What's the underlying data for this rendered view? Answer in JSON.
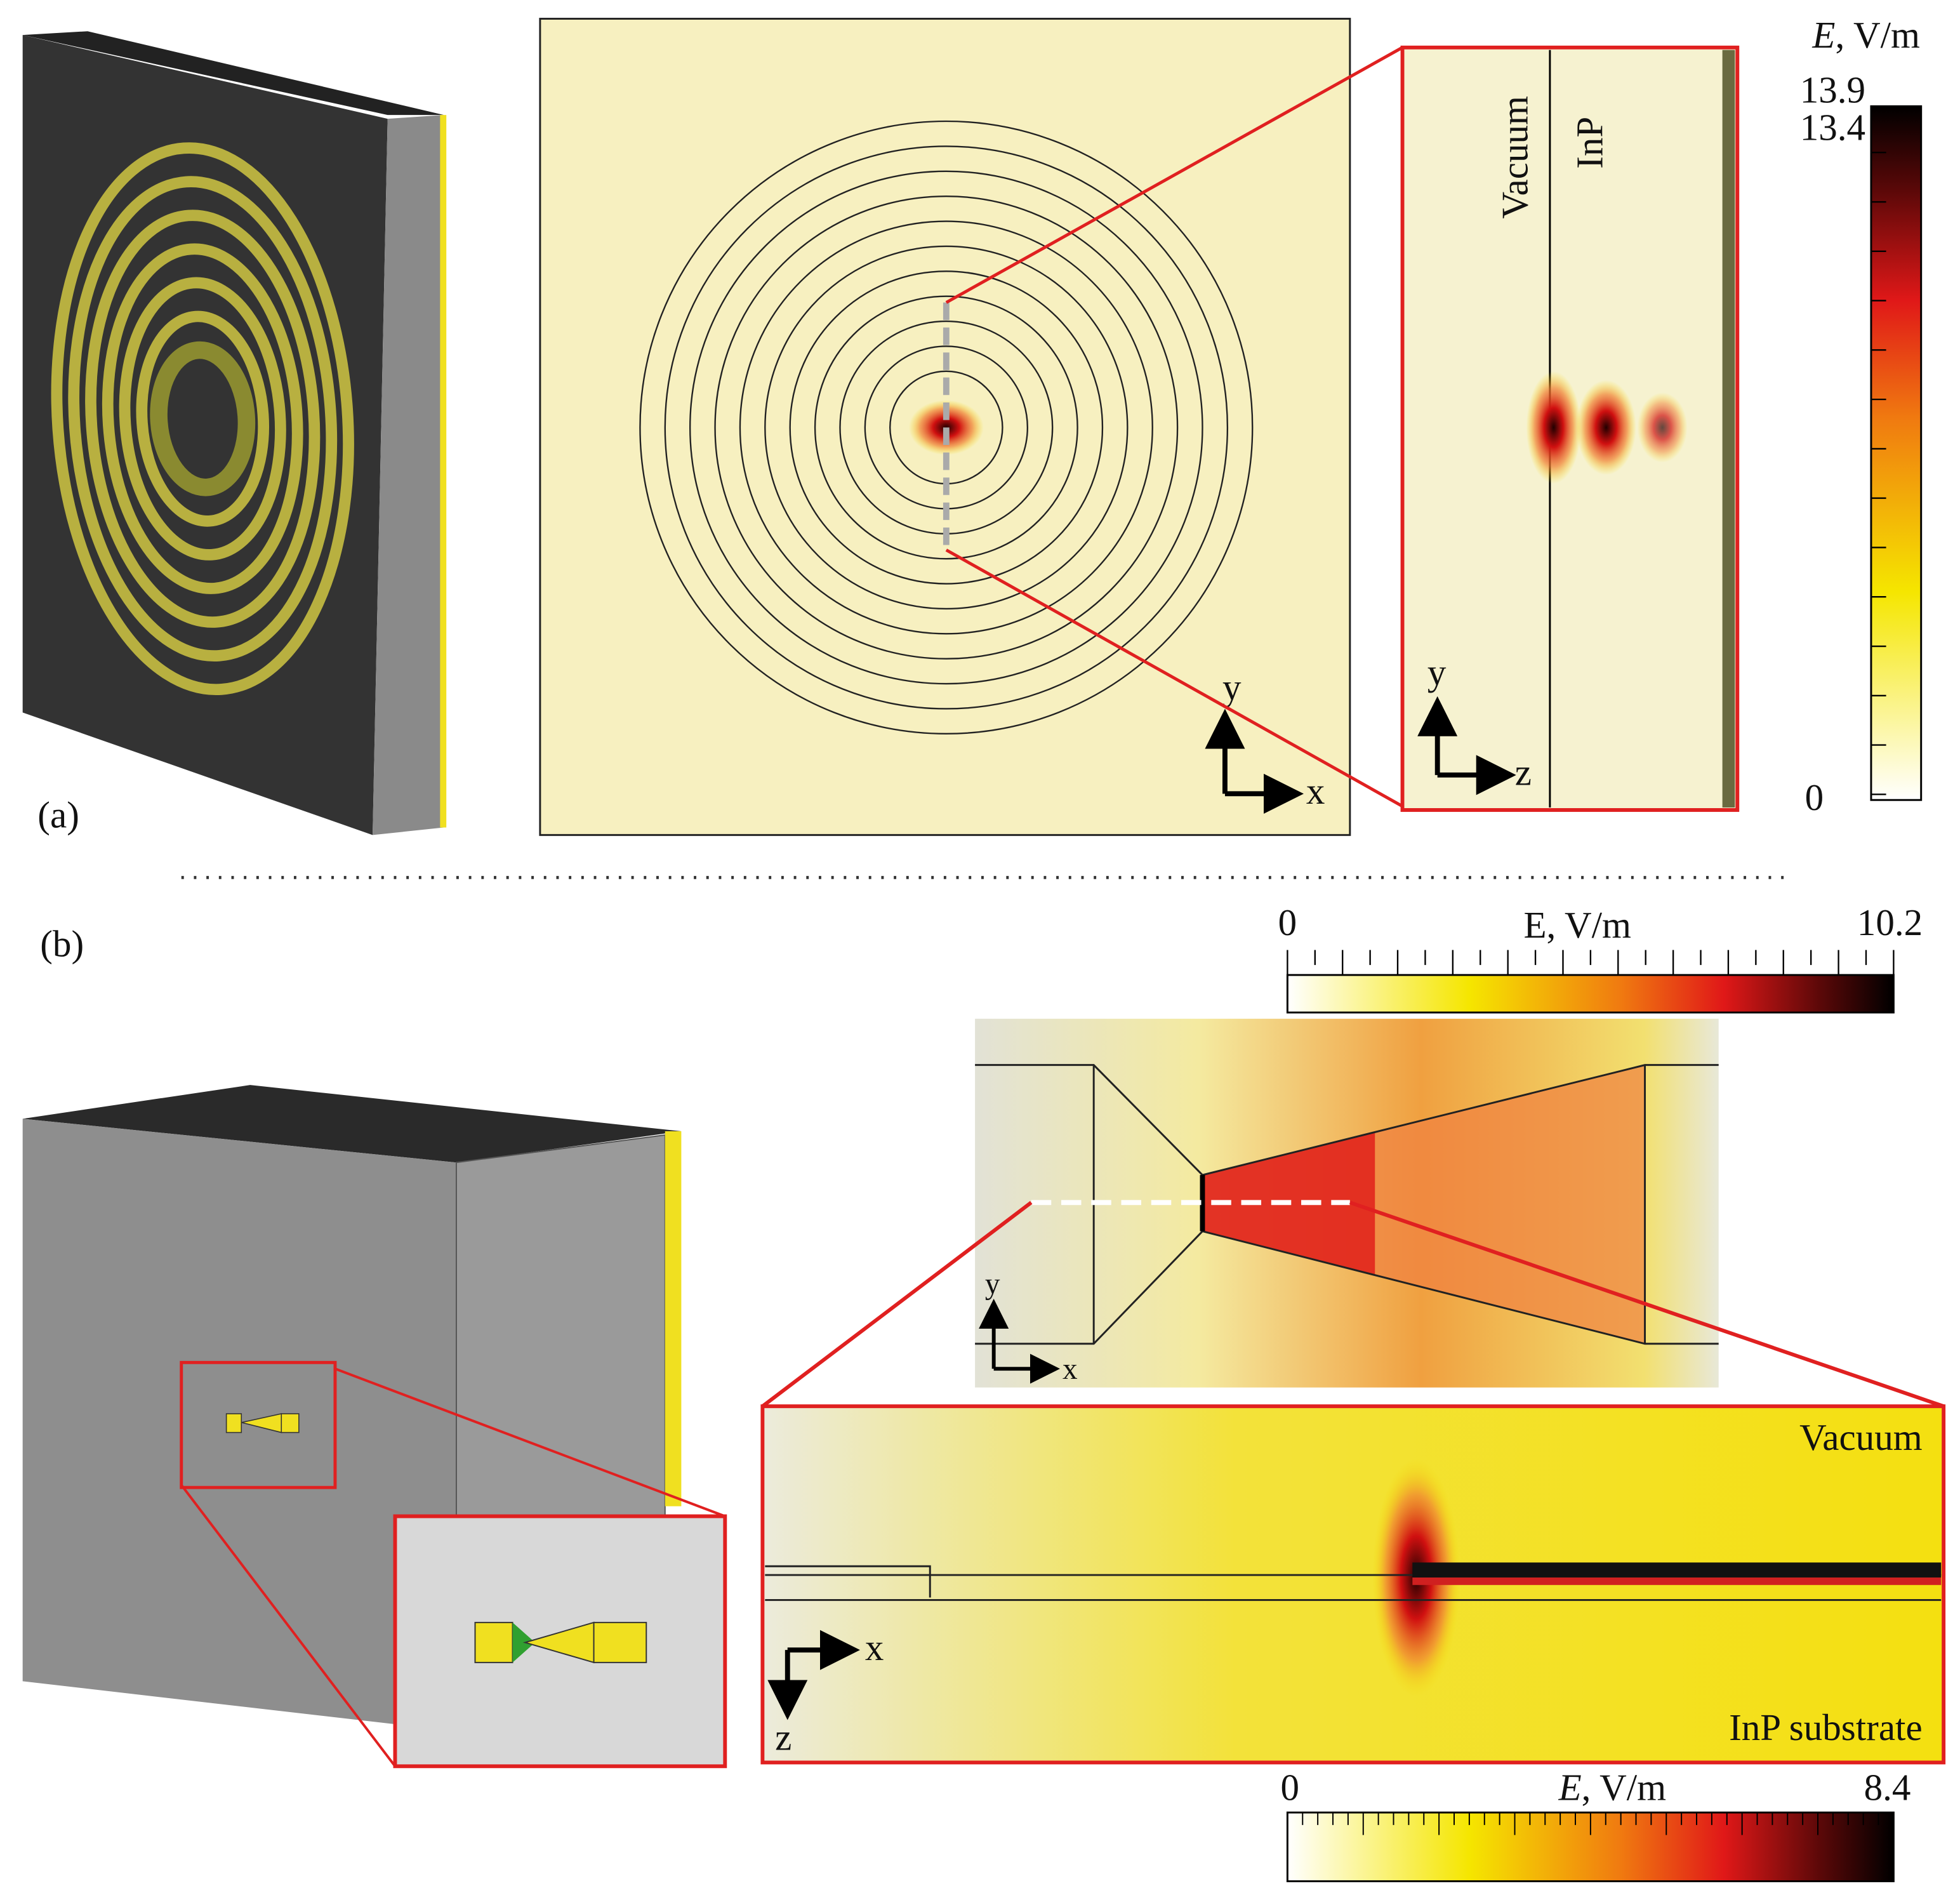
{
  "panel_a": {
    "label": "(a)",
    "colorbar": {
      "symbol": "E",
      "unit": ", V/m",
      "max": 13.9,
      "mark": 13.4,
      "min": 0
    },
    "map_axes": {
      "y": "y",
      "x": "x"
    },
    "zoom": {
      "left_region": "Vacuum",
      "right_region": "InP",
      "y": "y",
      "z": "z"
    }
  },
  "panel_b": {
    "label": "(b)",
    "top_colorbar": {
      "symbol": "E",
      "unit": ", V/m",
      "min": 0,
      "max": 10.2
    },
    "map_axes": {
      "y": "y",
      "x": "x"
    },
    "cross_section": {
      "top_region": "Vacuum",
      "bottom_region": "InP substrate",
      "x": "x",
      "z": "z"
    },
    "bottom_colorbar": {
      "symbol": "E",
      "unit": ", V/m",
      "min": 0,
      "max": 8.4
    }
  }
}
